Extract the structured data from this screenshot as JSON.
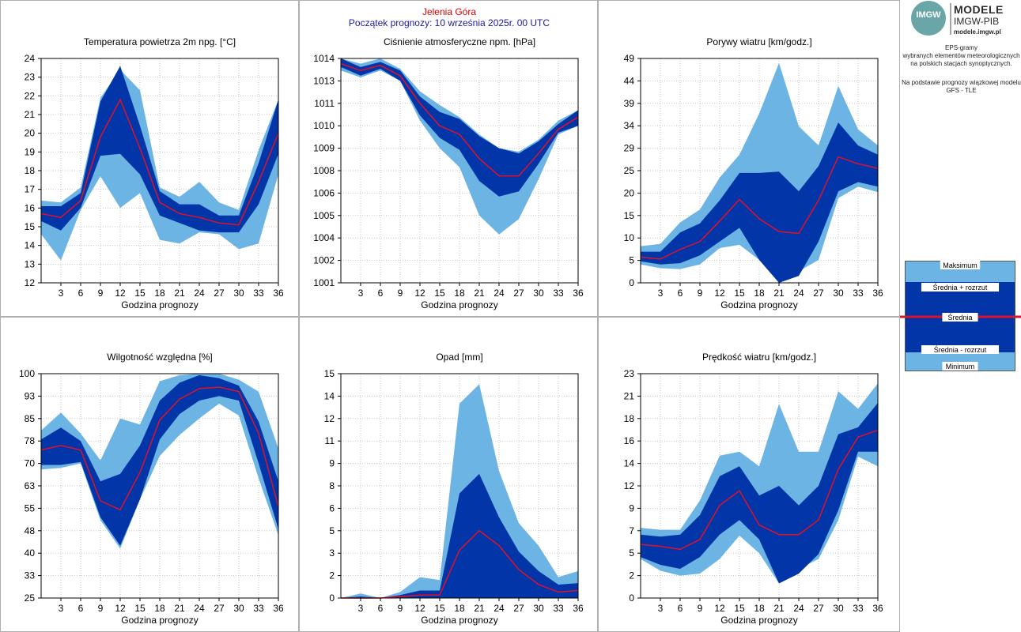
{
  "header": {
    "location": "Jelenia Góra",
    "forecast_start": "Początek prognozy: 10 września 2025r. 00 UTC"
  },
  "logo": {
    "mark": "IMGW",
    "title": "MODELE",
    "subtitle": "IMGW-PIB",
    "url": "modele.imgw.pl"
  },
  "description": {
    "line1": "EPS-gramy",
    "line2": "wybranych elementów meteorologicznych",
    "line3": "na polskich stacjach  synoptycznych.",
    "line4": "Na podstawie prognozy wiązkowej modelu",
    "line5": "GFS - TLE"
  },
  "legend": {
    "max": "Maksimum",
    "mean_plus": "Średnia + rozrzut",
    "mean": "Średnia",
    "mean_minus": "Średnia - rozrzut",
    "min": "Minimum"
  },
  "colors": {
    "outer_band": "#6cb4e4",
    "inner_band": "#0236a8",
    "mean_line": "#e0102a",
    "grid": "#c8c8c8"
  },
  "chart_data": [
    {
      "type": "area",
      "title": "Temperatura powietrza 2m npg. [°C]",
      "xlabel": "Godzina prognozy",
      "x": [
        0,
        3,
        6,
        9,
        12,
        15,
        18,
        21,
        24,
        27,
        30,
        33,
        36
      ],
      "x_ticks": [
        3,
        6,
        9,
        12,
        15,
        18,
        21,
        24,
        27,
        30,
        33,
        36
      ],
      "ylim": [
        12,
        24
      ],
      "y_ticks": [
        "12",
        "13",
        "14",
        "15",
        "16",
        "17",
        "18",
        "19",
        "20",
        "21",
        "22",
        "23",
        "24"
      ],
      "y_tick_values": [
        12,
        13,
        14,
        15,
        16,
        17,
        18,
        19,
        20,
        21,
        22,
        23,
        24
      ],
      "series": {
        "max": [
          16.4,
          16.3,
          17.1,
          21.9,
          23.4,
          22.3,
          17.1,
          16.6,
          17.4,
          16.3,
          15.9,
          19.1,
          21.8
        ],
        "sd_plus": [
          16.1,
          16.1,
          16.8,
          21.7,
          23.6,
          20.4,
          16.9,
          16.2,
          16.2,
          15.6,
          15.6,
          18.4,
          21.8
        ],
        "mean": [
          15.7,
          15.5,
          16.4,
          19.8,
          21.8,
          19.2,
          16.3,
          15.7,
          15.5,
          15.2,
          15.1,
          17.4,
          20.0
        ],
        "sd_minus": [
          15.3,
          14.8,
          16.0,
          18.8,
          18.9,
          17.8,
          15.6,
          15.2,
          14.8,
          14.7,
          14.7,
          16.2,
          18.9
        ],
        "min": [
          14.6,
          13.2,
          15.9,
          17.7,
          16.0,
          16.8,
          14.3,
          14.1,
          14.7,
          14.6,
          13.8,
          14.1,
          17.8
        ]
      }
    },
    {
      "type": "area",
      "title": "Ciśnienie atmosferyczne npm. [hPa]",
      "xlabel": "Godzina prognozy",
      "x": [
        0,
        3,
        6,
        9,
        12,
        15,
        18,
        21,
        24,
        27,
        30,
        33,
        36
      ],
      "x_ticks": [
        3,
        6,
        9,
        12,
        15,
        18,
        21,
        24,
        27,
        30,
        33,
        36
      ],
      "ylim": [
        1001,
        1014
      ],
      "y_ticks": [
        "1001",
        "1002",
        "1004",
        "1005",
        "1006",
        "1008",
        "1009",
        "1010",
        "1011",
        "1013",
        "1014"
      ],
      "y_tick_values": [
        1001,
        1002.3,
        1003.6,
        1004.9,
        1006.2,
        1007.5,
        1008.8,
        1010.1,
        1011.4,
        1012.7,
        1014
      ],
      "series": {
        "max": [
          1014.0,
          1013.7,
          1014.0,
          1013.4,
          1012.1,
          1011.3,
          1010.6,
          1009.6,
          1008.8,
          1008.6,
          1009.3,
          1010.4,
          1011.0
        ],
        "sd_plus": [
          1014.0,
          1013.5,
          1013.8,
          1013.3,
          1011.8,
          1010.9,
          1010.5,
          1009.5,
          1008.8,
          1008.5,
          1009.2,
          1010.2,
          1011.0
        ],
        "mean": [
          1013.7,
          1013.3,
          1013.6,
          1013.0,
          1011.4,
          1010.1,
          1009.6,
          1008.2,
          1007.2,
          1007.2,
          1008.5,
          1009.9,
          1010.6
        ],
        "sd_minus": [
          1013.5,
          1013.0,
          1013.4,
          1012.7,
          1010.7,
          1009.4,
          1008.7,
          1006.9,
          1006.0,
          1006.3,
          1007.9,
          1009.7,
          1010.1
        ],
        "min": [
          1013.3,
          1012.9,
          1013.3,
          1012.7,
          1010.4,
          1008.8,
          1007.7,
          1004.9,
          1003.8,
          1004.7,
          1007.0,
          1009.6,
          1010.1
        ]
      }
    },
    {
      "type": "area",
      "title": "Porywy wiatru [km/godz.]",
      "xlabel": "Godzina prognozy",
      "x": [
        0,
        3,
        6,
        9,
        12,
        15,
        18,
        21,
        24,
        27,
        30,
        33,
        36
      ],
      "x_ticks": [
        3,
        6,
        9,
        12,
        15,
        18,
        21,
        24,
        27,
        30,
        33,
        36
      ],
      "ylim": [
        0,
        49
      ],
      "y_ticks": [
        "0",
        "5",
        "10",
        "15",
        "20",
        "25",
        "29",
        "34",
        "39",
        "44",
        "49"
      ],
      "y_tick_values": [
        0,
        4.9,
        9.8,
        14.7,
        19.6,
        24.5,
        29.4,
        34.3,
        39.2,
        44.1,
        49
      ],
      "series": {
        "max": [
          8.0,
          8.5,
          13.2,
          16.0,
          23.0,
          28.0,
          37.0,
          48.0,
          34.2,
          30.0,
          43.0,
          33.5,
          30.0
        ],
        "sd_plus": [
          6.8,
          6.8,
          11.0,
          13.0,
          18.0,
          24.0,
          24.0,
          24.3,
          20.0,
          25.5,
          35.0,
          30.0,
          28.0
        ],
        "mean": [
          5.6,
          5.2,
          7.3,
          9.0,
          13.5,
          18.2,
          14.0,
          11.2,
          10.8,
          18.0,
          27.5,
          26.0,
          25.0
        ],
        "sd_minus": [
          4.7,
          4.0,
          4.3,
          6.0,
          9.0,
          12.0,
          5.0,
          0.0,
          1.5,
          9.0,
          20.0,
          22.0,
          21.0
        ],
        "min": [
          4.0,
          3.2,
          3.0,
          4.0,
          7.6,
          8.3,
          5.0,
          0.2,
          2.5,
          5.0,
          18.5,
          21.0,
          19.8
        ]
      }
    },
    {
      "type": "area",
      "title": "Wilgotność względna [%]",
      "xlabel": "Godzina prognozy",
      "x": [
        0,
        3,
        6,
        9,
        12,
        15,
        18,
        21,
        24,
        27,
        30,
        33,
        36
      ],
      "x_ticks": [
        3,
        6,
        9,
        12,
        15,
        18,
        21,
        24,
        27,
        30,
        33,
        36
      ],
      "ylim": [
        25,
        100
      ],
      "y_ticks": [
        "25",
        "33",
        "40",
        "48",
        "55",
        "63",
        "70",
        "78",
        "85",
        "93",
        "100"
      ],
      "y_tick_values": [
        25,
        32.5,
        40,
        47.5,
        55,
        62.5,
        70,
        77.5,
        85,
        92.5,
        100
      ],
      "series": {
        "max": [
          81.0,
          87.0,
          80.0,
          71.0,
          85.0,
          83.0,
          97.5,
          99.5,
          100,
          100,
          98.0,
          94.0,
          75.0
        ],
        "sd_plus": [
          78.0,
          82.0,
          77.5,
          64.0,
          66.5,
          76.0,
          91.0,
          97.0,
          99.5,
          98.5,
          96.0,
          84.0,
          64.0
        ],
        "mean": [
          74.5,
          76.0,
          74.5,
          57.5,
          54.5,
          67.0,
          84.5,
          91.5,
          95.0,
          95.5,
          94.0,
          80.0,
          55.5
        ],
        "sd_minus": [
          69.5,
          69.5,
          70.5,
          52.0,
          42.5,
          58.0,
          78.0,
          86.5,
          91.0,
          92.5,
          91.0,
          70.0,
          48.0
        ],
        "min": [
          68.0,
          68.5,
          70.0,
          51.0,
          41.5,
          58.0,
          72.5,
          79.5,
          85.0,
          90.0,
          86.0,
          65.0,
          46.0
        ]
      }
    },
    {
      "type": "area",
      "title": "Opad [mm]",
      "xlabel": "Godzina prognozy",
      "x": [
        0,
        3,
        6,
        9,
        12,
        15,
        18,
        21,
        24,
        27,
        30,
        33,
        36
      ],
      "x_ticks": [
        3,
        6,
        9,
        12,
        15,
        18,
        21,
        24,
        27,
        30,
        33,
        36
      ],
      "ylim": [
        0,
        15
      ],
      "y_ticks": [
        "0",
        "2",
        "3",
        "5",
        "6",
        "8",
        "9",
        "11",
        "12",
        "14",
        "15"
      ],
      "y_tick_values": [
        0,
        1.5,
        3,
        4.5,
        6,
        7.5,
        9,
        10.5,
        12,
        13.5,
        15
      ],
      "series": {
        "max": [
          0.0,
          0.3,
          0.0,
          0.4,
          1.4,
          1.2,
          13.0,
          14.3,
          8.5,
          5.0,
          3.5,
          1.4,
          1.8
        ],
        "sd_plus": [
          0.0,
          0.1,
          0.0,
          0.2,
          0.5,
          0.5,
          7.0,
          8.3,
          5.4,
          3.1,
          1.8,
          0.9,
          1.0
        ],
        "mean": [
          0.0,
          0.0,
          0.0,
          0.1,
          0.2,
          0.2,
          3.2,
          4.5,
          3.5,
          1.9,
          0.9,
          0.4,
          0.5
        ],
        "sd_minus": [
          0.0,
          0.0,
          0.0,
          0.0,
          0.0,
          0.0,
          0.0,
          0.0,
          0.0,
          0.0,
          0.0,
          0.0,
          0.0
        ],
        "min": [
          0.0,
          0.0,
          0.0,
          0.0,
          0.0,
          0.0,
          0.0,
          0.0,
          0.5,
          0.0,
          0.0,
          0.0,
          0.0
        ]
      }
    },
    {
      "type": "area",
      "title": "Prędkość wiatru [km/godz.]",
      "xlabel": "Godzina prognozy",
      "x": [
        0,
        3,
        6,
        9,
        12,
        15,
        18,
        21,
        24,
        27,
        30,
        33,
        36
      ],
      "x_ticks": [
        3,
        6,
        9,
        12,
        15,
        18,
        21,
        24,
        27,
        30,
        33,
        36
      ],
      "ylim": [
        0,
        23
      ],
      "y_ticks": [
        "0",
        "2",
        "5",
        "7",
        "9",
        "12",
        "14",
        "16",
        "18",
        "21",
        "23"
      ],
      "y_tick_values": [
        0,
        2.3,
        4.6,
        6.9,
        9.2,
        11.5,
        13.8,
        16.1,
        18.4,
        20.7,
        23
      ],
      "series": {
        "max": [
          7.2,
          7.0,
          7.0,
          10.0,
          14.6,
          15.0,
          13.5,
          19.9,
          15.0,
          15.0,
          21.2,
          19.4,
          22.0
        ],
        "sd_plus": [
          6.5,
          6.3,
          6.5,
          8.5,
          12.5,
          13.5,
          10.5,
          11.5,
          9.5,
          11.5,
          16.8,
          17.5,
          20.0
        ],
        "mean": [
          5.5,
          5.3,
          5.0,
          6.0,
          9.5,
          11.0,
          7.5,
          6.5,
          6.5,
          8.0,
          13.2,
          16.5,
          17.2
        ],
        "sd_minus": [
          4.2,
          3.4,
          3.0,
          4.2,
          6.5,
          8.0,
          6.0,
          1.5,
          2.5,
          4.5,
          9.0,
          15.0,
          15.0
        ],
        "min": [
          4.0,
          2.8,
          2.3,
          2.5,
          4.0,
          6.4,
          4.6,
          1.5,
          3.0,
          4.0,
          8.0,
          14.5,
          13.5
        ]
      }
    }
  ]
}
